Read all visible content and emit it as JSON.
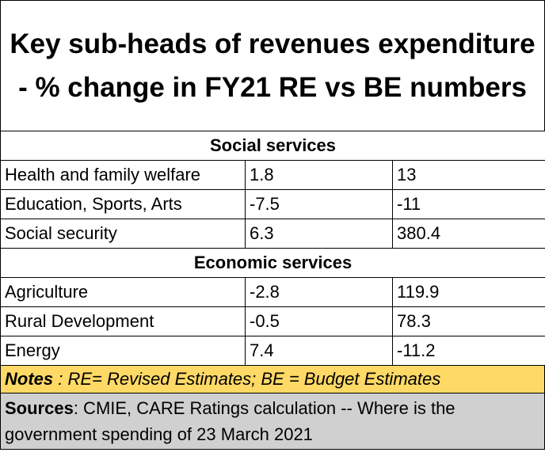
{
  "title": "Key sub-heads of revenues expenditure - % change in FY21 RE vs BE numbers",
  "sections": [
    {
      "heading": "Social services",
      "rows": [
        {
          "label": "Health and family welfare",
          "v1": "1.8",
          "v2": "13"
        },
        {
          "label": "Education, Sports, Arts",
          "v1": "-7.5",
          "v2": "-11"
        },
        {
          "label": "Social security",
          "v1": "6.3",
          "v2": "380.4"
        }
      ]
    },
    {
      "heading": "Economic services",
      "rows": [
        {
          "label": "Agriculture",
          "v1": "-2.8",
          "v2": "119.9"
        },
        {
          "label": "Rural Development",
          "v1": "-0.5",
          "v2": "78.3"
        },
        {
          "label": "Energy",
          "v1": "7.4",
          "v2": "-11.2"
        }
      ]
    }
  ],
  "notes": {
    "label": "Notes",
    "text": " : RE= Revised Estimates; BE = Budget Estimates",
    "background": "#ffd966"
  },
  "sources": {
    "label": "Sources",
    "text": ": CMIE, CARE Ratings calculation -- Where is the government spending of 23 March 2021",
    "background": "#d0d0d0"
  }
}
